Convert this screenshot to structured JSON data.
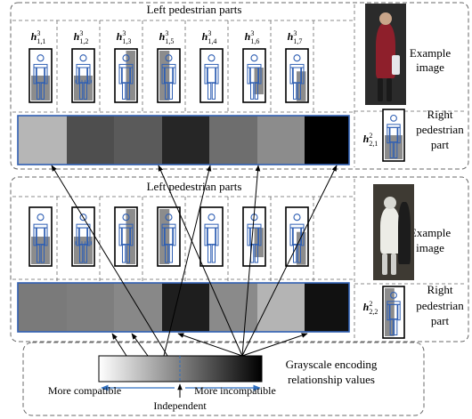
{
  "panels": [
    {
      "header": "Left pedestrian parts",
      "part_labels": [
        {
          "base": "h",
          "sup": "3",
          "sub": "1,1"
        },
        {
          "base": "h",
          "sup": "3",
          "sub": "1,2"
        },
        {
          "base": "h",
          "sup": "3",
          "sub": "1,3"
        },
        {
          "base": "h",
          "sup": "3",
          "sub": "1,5"
        },
        {
          "base": "h",
          "sup": "3",
          "sub": "1,4"
        },
        {
          "base": "h",
          "sup": "3",
          "sub": "1,6"
        },
        {
          "base": "h",
          "sup": "3",
          "sub": "1,7"
        }
      ],
      "left_parts": [
        "lower-half",
        "lower-half-hatched",
        "right-strip",
        "left-strip",
        "none",
        "right-lower-block",
        "right-block-tall"
      ],
      "example_label": [
        "Example",
        "image"
      ],
      "right_part_label": {
        "base": "h",
        "sup": "2",
        "sub": "2,1"
      },
      "right_part_caption": [
        "Right",
        "pedestrian",
        "part"
      ],
      "right_part": "lower-half",
      "gray_cells": [
        "#b6b6b6",
        "#4e4e4e",
        "#5a5a5a",
        "#262626",
        "#6e6e6e",
        "#8c8c8c",
        "#000000"
      ]
    },
    {
      "header": "Left pedestrian parts",
      "part_labels": [],
      "left_parts": [
        "lower-half",
        "lower-half-hatched",
        "right-strip",
        "left-strip",
        "none",
        "right-lower-block",
        "right-block-tall"
      ],
      "example_label": [
        "Example",
        "image"
      ],
      "right_part_label": {
        "base": "h",
        "sup": "2",
        "sub": "2,2"
      },
      "right_part_caption": [
        "Right",
        "pedestrian",
        "part"
      ],
      "right_part": "left-strip",
      "gray_cells": [
        "#7a7a7a",
        "#7e7e7e",
        "#888888",
        "#1e1e1e",
        "#8a8a8a",
        "#b4b4b4",
        "#111111"
      ]
    }
  ],
  "legend": {
    "title_lines": [
      "Grayscale encoding",
      "relationship values"
    ],
    "left_label": "More compatible",
    "middle_label": "Independent",
    "right_label": "More incompatible"
  },
  "colors": {
    "part_fill": "#8c8c8c",
    "figure_stroke": "#2f5fb3",
    "strip_border": "#2f5fb3",
    "dashed": "#6a6a6a"
  }
}
